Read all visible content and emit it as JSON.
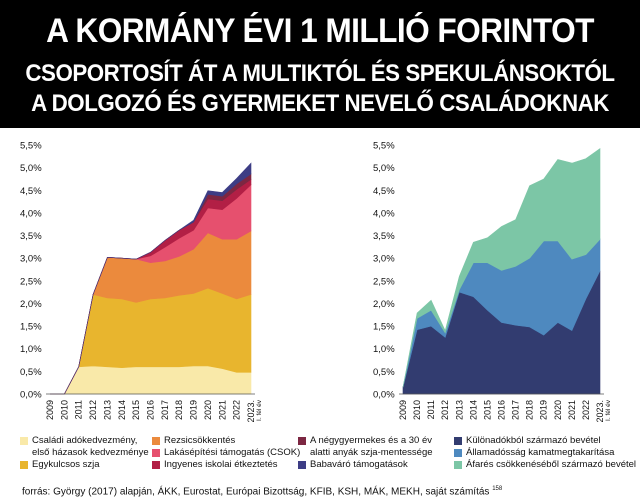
{
  "header": {
    "title": "A KORMÁNY ÉVI 1 MILLIÓ FORINTOT",
    "subtitle1": "CSOPORTOSÍT ÁT A MULTIKTÓL ÉS SPEKULÁNSOKTÓL",
    "subtitle2": "A DOLGOZÓ ÉS GYERMEKET NEVELŐ CSALÁDOKNAK"
  },
  "chart_data": [
    {
      "type": "area",
      "stacked": true,
      "title": "",
      "xlabel": "",
      "ylabel": "",
      "ylim": [
        0,
        5.5
      ],
      "yticks": [
        "0,0%",
        "0,5%",
        "1,0%",
        "1,5%",
        "2,0%",
        "2,5%",
        "3,0%",
        "3,5%",
        "4,0%",
        "4,5%",
        "5,0%",
        "5,5%"
      ],
      "x": [
        "2009",
        "2010",
        "2011",
        "2012",
        "2013",
        "2014",
        "2015",
        "2016",
        "2017",
        "2018",
        "2019",
        "2020",
        "2021",
        "2022",
        "2023. I. fél év"
      ],
      "x_display": [
        "2009",
        "2010",
        "2011",
        "2012",
        "2013",
        "2014",
        "2015",
        "2016",
        "2017",
        "2018",
        "2019",
        "2020",
        "2021",
        "2022",
        "2023."
      ],
      "x_display_sub": [
        "",
        "",
        "",
        "",
        "",
        "",
        "",
        "",
        "",
        "",
        "",
        "",
        "",
        "",
        "I. fél év"
      ],
      "grid": false,
      "legend": "bottom",
      "series": [
        {
          "name": "Családi adókedvezmény, első házasok kedvezménye",
          "color": "#f9e9a9",
          "values": [
            0,
            0,
            0.6,
            0.62,
            0.6,
            0.58,
            0.6,
            0.6,
            0.6,
            0.6,
            0.62,
            0.62,
            0.56,
            0.48,
            0.48
          ]
        },
        {
          "name": "Egykulcsos szja",
          "color": "#e8b52e",
          "values": [
            0,
            0,
            0,
            1.58,
            1.52,
            1.52,
            1.42,
            1.5,
            1.52,
            1.58,
            1.6,
            1.72,
            1.66,
            1.62,
            1.72
          ]
        },
        {
          "name": "Rezsicsökkentés",
          "color": "#eb8a3d",
          "values": [
            0,
            0,
            0,
            0,
            0.9,
            0.9,
            0.96,
            0.8,
            0.82,
            0.86,
            0.98,
            1.22,
            1.2,
            1.32,
            1.4
          ]
        },
        {
          "name": "Lakásépítési támogatás (CSOK)",
          "color": "#e6506e",
          "values": [
            0,
            0,
            0,
            0,
            0,
            0,
            0,
            0.15,
            0.3,
            0.4,
            0.42,
            0.55,
            0.65,
            0.9,
            1.02
          ]
        },
        {
          "name": "Ingyenes iskolai étkeztetés",
          "color": "#b21f45",
          "values": [
            0,
            0,
            0,
            0,
            0,
            0,
            0,
            0.08,
            0.15,
            0.18,
            0.18,
            0.2,
            0.2,
            0.2,
            0.12
          ]
        },
        {
          "name": "A négygyermekes és a 30 év alatti anyák szja-mentessége",
          "color": "#7c2742",
          "values": [
            0,
            0,
            0,
            0,
            0,
            0,
            0,
            0,
            0,
            0,
            0,
            0.1,
            0.1,
            0.12,
            0.12
          ]
        },
        {
          "name": "Babaváró támogatások",
          "color": "#3d3d85",
          "values": [
            0,
            0,
            0,
            0,
            0,
            0,
            0,
            0,
            0,
            0,
            0.04,
            0.08,
            0.08,
            0.12,
            0.24
          ]
        }
      ]
    },
    {
      "type": "area",
      "stacked": true,
      "title": "",
      "xlabel": "",
      "ylabel": "",
      "ylim": [
        0,
        5.5
      ],
      "yticks": [
        "0,0%",
        "0,5%",
        "1,0%",
        "1,5%",
        "2,0%",
        "2,5%",
        "3,0%",
        "3,5%",
        "4,0%",
        "4,5%",
        "5,0%",
        "5,5%"
      ],
      "x": [
        "2009",
        "2010",
        "2011",
        "2012",
        "2013",
        "2014",
        "2015",
        "2016",
        "2017",
        "2018",
        "2019",
        "2020",
        "2021",
        "2022",
        "2023. I. fél év"
      ],
      "x_display": [
        "2009",
        "2010",
        "2011",
        "2012",
        "2013",
        "2014",
        "2015",
        "2016",
        "2017",
        "2018",
        "2019",
        "2020",
        "2021",
        "2022",
        "2023."
      ],
      "x_display_sub": [
        "",
        "",
        "",
        "",
        "",
        "",
        "",
        "",
        "",
        "",
        "",
        "",
        "",
        "",
        "I. fél év"
      ],
      "grid": false,
      "legend": "bottom",
      "series": [
        {
          "name": "Különadókból származó bevétel",
          "color": "#323c70",
          "values": [
            0.15,
            1.42,
            1.5,
            1.25,
            2.25,
            2.15,
            1.85,
            1.58,
            1.52,
            1.48,
            1.3,
            1.58,
            1.4,
            2.1,
            2.72
          ]
        },
        {
          "name": "Államadósság kamatmegtakarítása",
          "color": "#4e89bf",
          "values": [
            0,
            0.25,
            0.35,
            0.1,
            0.05,
            0.75,
            1.05,
            1.15,
            1.3,
            1.52,
            2.08,
            1.8,
            1.58,
            0.98,
            0.7
          ]
        },
        {
          "name": "Áfarés csökkenéséből származó bevétel",
          "color": "#7cc6a6",
          "values": [
            0,
            0.12,
            0.22,
            0.05,
            0.3,
            0.45,
            0.55,
            0.97,
            1.03,
            1.6,
            1.37,
            1.8,
            2.12,
            2.12,
            2.0
          ]
        }
      ]
    }
  ],
  "legend": {
    "col1": [
      "Családi adókedvezmény,",
      "első házasok kedvezménye",
      "Egykulcsos szja"
    ],
    "col2": [
      "Rezsicsökkentés",
      "Lakásépítési támogatás (CSOK)",
      "Ingyenes iskolai étkeztetés"
    ],
    "col3": [
      "A négygyermekes és a 30 év",
      "alatti anyák szja-mentessége",
      "Babaváró támogatások"
    ],
    "col4": [
      "Különadókból származó bevétel",
      "Államadósság kamatmegtakarítása",
      "Áfarés csökkenéséből származó bevétel"
    ]
  },
  "source": {
    "text": "forrás: György (2017) alapján, ÁKK, Eurostat, Európai Bizottság, KFIB, KSH, MÁK, MEKH, saját számítás",
    "note": "158"
  }
}
